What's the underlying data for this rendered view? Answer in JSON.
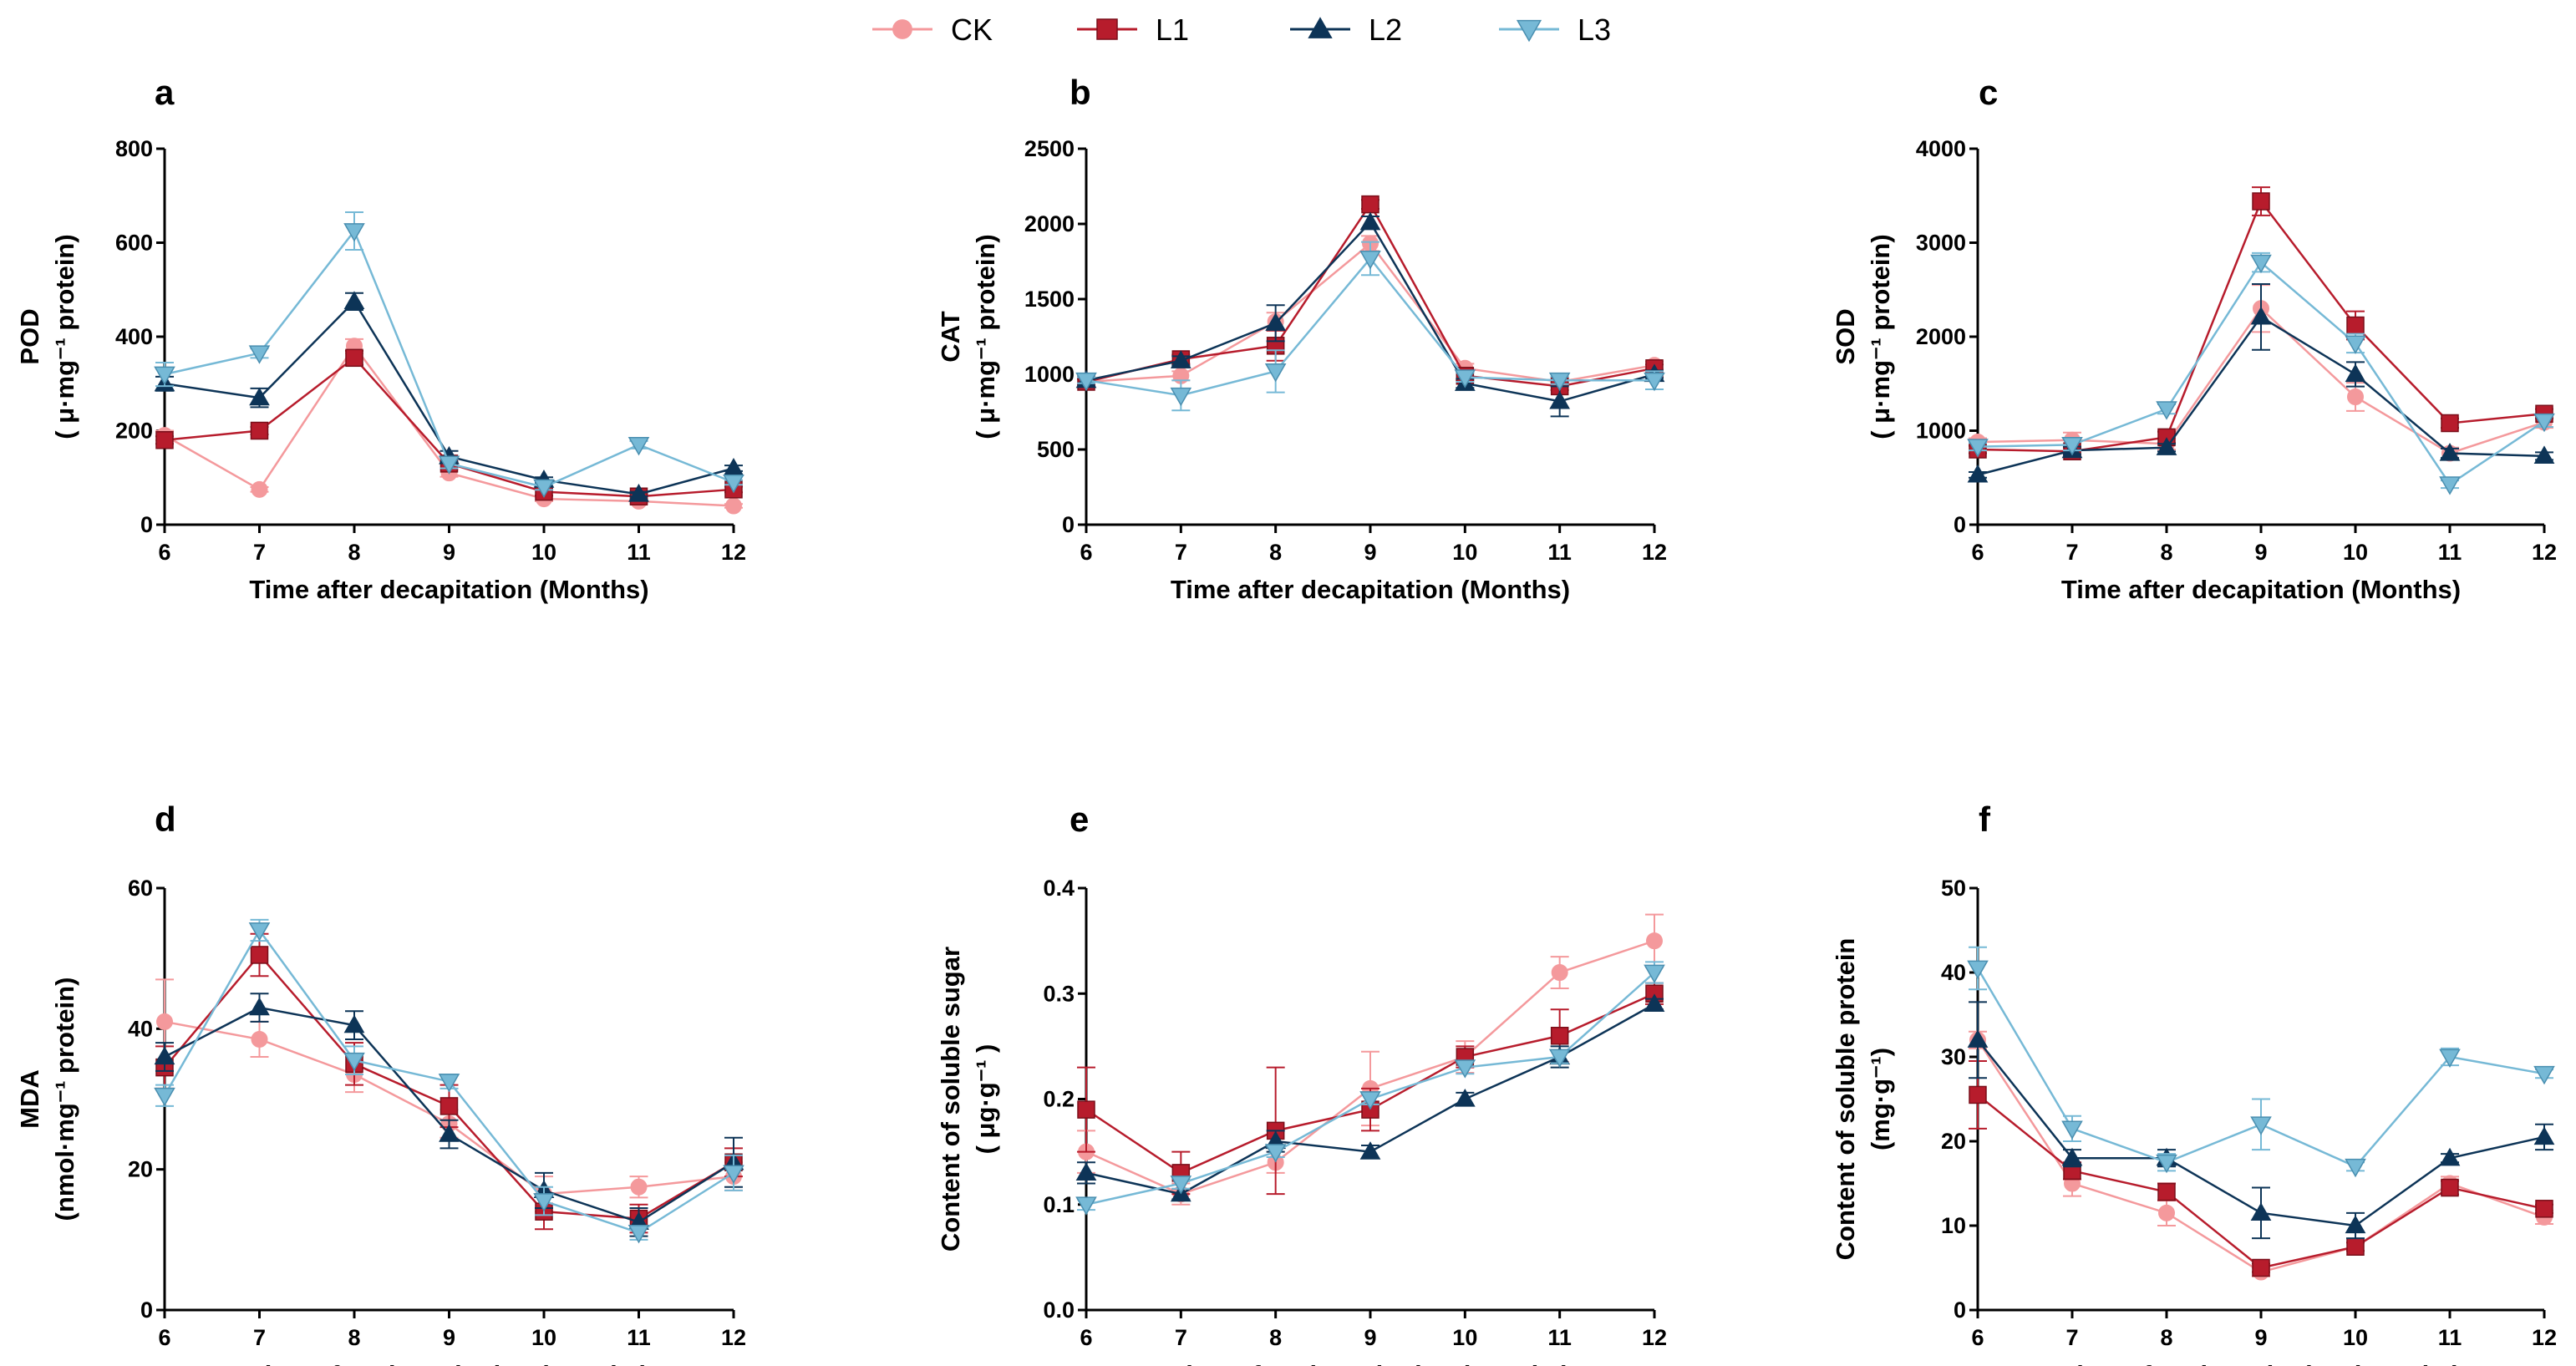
{
  "legend": [
    {
      "name": "CK",
      "color": "#f4999c",
      "marker": "circle"
    },
    {
      "name": "L1",
      "color": "#b71c2c",
      "marker": "square"
    },
    {
      "name": "L2",
      "color": "#0d3457",
      "marker": "triangle-up"
    },
    {
      "name": "L3",
      "color": "#76b9d6",
      "marker": "triangle-down"
    }
  ],
  "chart_data": [
    {
      "panel": "a",
      "type": "line",
      "xlabel": "Time after decapitation (Months)",
      "ylabel_lines": [
        "POD",
        "( μ·mg⁻¹ protein)"
      ],
      "categories": [
        6,
        7,
        8,
        9,
        10,
        11,
        12
      ],
      "ylim": [
        0,
        800
      ],
      "yticks": [
        0,
        200,
        400,
        600,
        800
      ],
      "series": [
        {
          "name": "CK",
          "values": [
            190,
            75,
            380,
            110,
            55,
            50,
            40
          ],
          "errors": [
            10,
            5,
            15,
            8,
            5,
            5,
            4
          ]
        },
        {
          "name": "L1",
          "values": [
            180,
            200,
            355,
            130,
            70,
            60,
            75
          ],
          "errors": [
            8,
            8,
            15,
            10,
            8,
            6,
            6
          ]
        },
        {
          "name": "L2",
          "values": [
            300,
            270,
            475,
            145,
            95,
            65,
            120
          ],
          "errors": [
            15,
            20,
            18,
            12,
            6,
            5,
            6
          ]
        },
        {
          "name": "L3",
          "values": [
            320,
            365,
            625,
            130,
            80,
            170,
            90
          ],
          "errors": [
            25,
            10,
            40,
            10,
            6,
            8,
            5
          ]
        }
      ]
    },
    {
      "panel": "b",
      "type": "line",
      "xlabel": "Time after decapitation (Months)",
      "ylabel_lines": [
        "CAT",
        "( μ·mg⁻¹ protein)"
      ],
      "categories": [
        6,
        7,
        8,
        9,
        10,
        11,
        12
      ],
      "ylim": [
        0,
        2500
      ],
      "yticks": [
        0,
        500,
        1000,
        1500,
        2000,
        2500
      ],
      "series": [
        {
          "name": "CK",
          "values": [
            950,
            990,
            1350,
            1870,
            1040,
            950,
            1060
          ],
          "errors": [
            20,
            30,
            60,
            50,
            30,
            25,
            25
          ]
        },
        {
          "name": "L1",
          "values": [
            950,
            1100,
            1190,
            2130,
            990,
            920,
            1040
          ],
          "errors": [
            20,
            30,
            100,
            30,
            30,
            25,
            25
          ]
        },
        {
          "name": "L2",
          "values": [
            960,
            1090,
            1340,
            2010,
            940,
            820,
            1000
          ],
          "errors": [
            20,
            30,
            120,
            40,
            30,
            100,
            25
          ]
        },
        {
          "name": "L3",
          "values": [
            960,
            860,
            1020,
            1770,
            980,
            960,
            960
          ],
          "errors": [
            20,
            100,
            140,
            110,
            30,
            25,
            60
          ]
        }
      ]
    },
    {
      "panel": "c",
      "type": "line",
      "xlabel": "Time after decapitation (Months)",
      "ylabel_lines": [
        "SOD",
        "( μ·mg⁻¹ protein)"
      ],
      "categories": [
        6,
        7,
        8,
        9,
        10,
        11,
        12
      ],
      "ylim": [
        0,
        4000
      ],
      "yticks": [
        0,
        1000,
        2000,
        3000,
        4000
      ],
      "series": [
        {
          "name": "CK",
          "values": [
            880,
            900,
            860,
            2300,
            1360,
            760,
            1090
          ],
          "errors": [
            40,
            80,
            60,
            250,
            150,
            60,
            60
          ]
        },
        {
          "name": "L1",
          "values": [
            800,
            780,
            930,
            3440,
            2120,
            1080,
            1180
          ],
          "errors": [
            40,
            40,
            60,
            150,
            150,
            50,
            50
          ]
        },
        {
          "name": "L2",
          "values": [
            530,
            790,
            820,
            2210,
            1600,
            760,
            730
          ],
          "errors": [
            30,
            40,
            40,
            350,
            130,
            50,
            40
          ]
        },
        {
          "name": "L3",
          "values": [
            830,
            850,
            1230,
            2790,
            1930,
            430,
            1100
          ],
          "errors": [
            40,
            60,
            50,
            100,
            100,
            40,
            60
          ]
        }
      ]
    },
    {
      "panel": "d",
      "type": "line",
      "xlabel": "Time after decapitation (Months)",
      "ylabel_lines": [
        "MDA",
        "(nmol·mg⁻¹ protein)"
      ],
      "categories": [
        6,
        7,
        8,
        9,
        10,
        11,
        12
      ],
      "ylim": [
        0,
        60
      ],
      "yticks": [
        0,
        20,
        40,
        60
      ],
      "series": [
        {
          "name": "CK",
          "values": [
            41,
            38.5,
            33.5,
            26.5,
            16.5,
            17.5,
            19
          ],
          "errors": [
            6,
            2.5,
            2.5,
            2,
            2.5,
            1.5,
            2
          ]
        },
        {
          "name": "L1",
          "values": [
            34.5,
            50.5,
            35,
            29,
            14,
            13,
            21
          ],
          "errors": [
            3,
            3,
            3,
            3,
            2.5,
            2,
            2
          ]
        },
        {
          "name": "L2",
          "values": [
            36,
            43,
            40.5,
            25,
            17,
            12.5,
            21
          ],
          "errors": [
            2,
            2,
            2,
            2,
            2.5,
            2,
            3.5
          ]
        },
        {
          "name": "L3",
          "values": [
            30.5,
            54,
            35.5,
            32.5,
            15.5,
            11,
            19.5
          ],
          "errors": [
            1.5,
            1.5,
            2,
            1,
            2,
            1,
            2.5
          ]
        }
      ]
    },
    {
      "panel": "e",
      "type": "line",
      "xlabel": "Time after decapitation (Months)",
      "ylabel_lines": [
        "Content of soluble sugar",
        "( μg·g⁻¹ )"
      ],
      "categories": [
        6,
        7,
        8,
        9,
        10,
        11,
        12
      ],
      "ylim": [
        0,
        0.4
      ],
      "yticks": [
        "0.0",
        "0.1",
        "0.2",
        "0.3",
        "0.4"
      ],
      "series": [
        {
          "name": "CK",
          "values": [
            0.15,
            0.11,
            0.14,
            0.21,
            0.24,
            0.32,
            0.35
          ],
          "errors": [
            0.02,
            0.01,
            0.01,
            0.035,
            0.015,
            0.015,
            0.025
          ]
        },
        {
          "name": "L1",
          "values": [
            0.19,
            0.13,
            0.17,
            0.19,
            0.24,
            0.26,
            0.3
          ],
          "errors": [
            0.04,
            0.02,
            0.06,
            0.02,
            0.01,
            0.025,
            0.01
          ]
        },
        {
          "name": "L2",
          "values": [
            0.13,
            0.11,
            0.16,
            0.15,
            0.2,
            0.24,
            0.29
          ],
          "errors": [
            0.01,
            0.005,
            0.01,
            0.006,
            0.006,
            0.01,
            0.005
          ]
        },
        {
          "name": "L3",
          "values": [
            0.1,
            0.12,
            0.15,
            0.2,
            0.23,
            0.24,
            0.32
          ],
          "errors": [
            0.005,
            0.005,
            0.005,
            0.005,
            0.006,
            0.006,
            0.01
          ]
        }
      ]
    },
    {
      "panel": "f",
      "type": "line",
      "xlabel": "Time after decapitation (Months)",
      "ylabel_lines": [
        "Content of soluble protein",
        "(mg·g⁻¹)"
      ],
      "categories": [
        6,
        7,
        8,
        9,
        10,
        11,
        12
      ],
      "ylim": [
        0,
        50
      ],
      "yticks": [
        0,
        10,
        20,
        30,
        40,
        50
      ],
      "series": [
        {
          "name": "CK",
          "values": [
            32,
            15,
            11.5,
            4.5,
            7.5,
            15,
            11
          ],
          "errors": [
            1,
            1.5,
            1.5,
            0.5,
            0.5,
            0.8,
            0.8
          ]
        },
        {
          "name": "L1",
          "values": [
            25.5,
            16.5,
            14,
            5,
            7.5,
            14.5,
            12
          ],
          "errors": [
            4,
            1,
            1,
            0.5,
            0.5,
            0.8,
            0.5
          ]
        },
        {
          "name": "L2",
          "values": [
            32,
            18,
            18,
            11.5,
            10,
            18,
            20.5
          ],
          "errors": [
            4.5,
            1,
            1,
            3,
            1.5,
            0.5,
            1.5
          ]
        },
        {
          "name": "L3",
          "values": [
            40.5,
            21.5,
            17.5,
            22,
            17,
            30,
            28
          ],
          "errors": [
            2.5,
            1.5,
            1,
            3,
            0.5,
            1,
            0.5
          ]
        }
      ]
    }
  ]
}
